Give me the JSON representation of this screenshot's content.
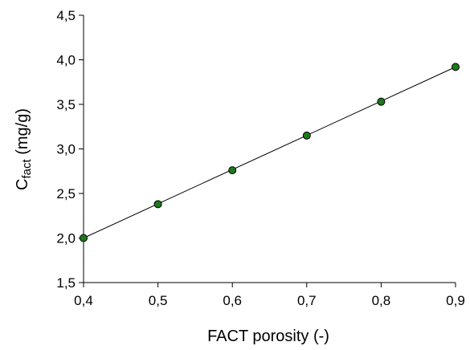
{
  "chart_data": {
    "type": "scatter",
    "title": "",
    "xlabel": "FACT porosity (-)",
    "ylabel": {
      "main": "C",
      "subscript": "fact",
      "suffix": " (mg/g)"
    },
    "xlim": [
      0.4,
      0.9
    ],
    "ylim": [
      1.5,
      4.5
    ],
    "x_ticks": [
      "0,4",
      "0,5",
      "0,6",
      "0,7",
      "0,8",
      "0,9"
    ],
    "x_tick_values": [
      0.4,
      0.5,
      0.6,
      0.7,
      0.8,
      0.9
    ],
    "y_ticks": [
      "1,5",
      "2,0",
      "2,5",
      "3,0",
      "3,5",
      "4,0",
      "4,5"
    ],
    "y_tick_values": [
      1.5,
      2.0,
      2.5,
      3.0,
      3.5,
      4.0,
      4.5
    ],
    "grid": false,
    "legend": "none",
    "series": [
      {
        "x": [
          0.4,
          0.5,
          0.6,
          0.7,
          0.8,
          0.9
        ],
        "y": [
          2.0,
          2.38,
          2.76,
          3.15,
          3.53,
          3.92
        ],
        "marker_color": "#1a7a1a",
        "marker_edge": "#000000",
        "fit_line": {
          "from": [
            0.4,
            2.0
          ],
          "to": [
            0.9,
            3.92
          ],
          "color": "#000000"
        }
      }
    ]
  }
}
